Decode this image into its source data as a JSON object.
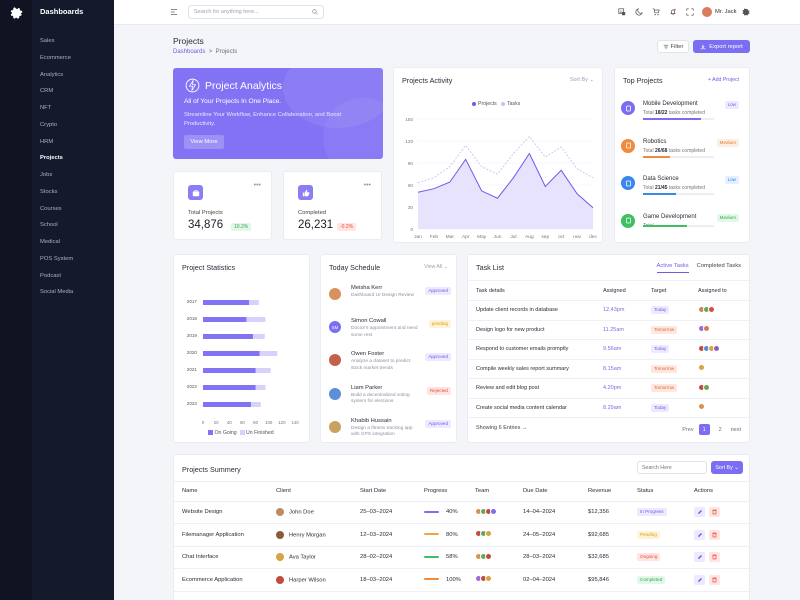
{
  "sidebar": {
    "brand": "Dashboards",
    "items": [
      {
        "label": "Sales"
      },
      {
        "label": "Ecommerce"
      },
      {
        "label": "Analytics"
      },
      {
        "label": "CRM"
      },
      {
        "label": "NFT"
      },
      {
        "label": "Crypto"
      },
      {
        "label": "HRM"
      },
      {
        "label": "Projects"
      },
      {
        "label": "Jobs"
      },
      {
        "label": "Stocks"
      },
      {
        "label": "Courses"
      },
      {
        "label": "School"
      },
      {
        "label": "Medical"
      },
      {
        "label": "POS System"
      },
      {
        "label": "Podcast"
      },
      {
        "label": "Social Media"
      }
    ]
  },
  "topbar": {
    "search_placeholder": "Search for anything here...",
    "user_name": "Mr. Jack"
  },
  "page": {
    "title": "Projects",
    "breadcrumb_root": "Dashboards",
    "breadcrumb_sep": ">",
    "breadcrumb_current": "Projects",
    "filter_label": "Filter",
    "export_label": "Export report"
  },
  "hero": {
    "title": "Project Analytics",
    "subtitle": "All of Your Projects In One Place.",
    "body": "Streamline Your Workflow, Enhance Collaboration, and Boost Productivity.",
    "button": "View More"
  },
  "stats": [
    {
      "label": "Total Projects",
      "value": "34,876",
      "badge": "10.2%",
      "trend": "up"
    },
    {
      "label": "Completed",
      "value": "26,231",
      "badge": "-0.2%",
      "trend": "down"
    }
  ],
  "activity": {
    "title": "Projects Activity",
    "sort_label": "Sort By",
    "legend_projects": "Projects",
    "legend_tasks": "Tasks"
  },
  "chart_data": [
    {
      "type": "area",
      "title": "Projects Activity",
      "x": [
        "Jan",
        "Feb",
        "Mar",
        "Apr",
        "May",
        "Jun",
        "Jul",
        "Aug",
        "sep",
        "oct",
        "nov",
        "dec"
      ],
      "ylim": [
        0,
        150
      ],
      "yticks": [
        0,
        30,
        60,
        90,
        120,
        150
      ],
      "series": [
        {
          "name": "Projects",
          "values": [
            50,
            55,
            64,
            95,
            52,
            42,
            70,
            103,
            58,
            80,
            48,
            29
          ]
        },
        {
          "name": "Tasks",
          "values": [
            63,
            70,
            85,
            114,
            85,
            75,
            103,
            126,
            98,
            112,
            82,
            70
          ]
        }
      ]
    },
    {
      "type": "bar",
      "title": "Project Statistics",
      "orientation": "horizontal",
      "categories": [
        "2017",
        "2018",
        "2019",
        "2020",
        "2021",
        "2022",
        "2023"
      ],
      "xlim": [
        0,
        140
      ],
      "xticks": [
        0,
        20,
        40,
        60,
        80,
        100,
        120,
        140
      ],
      "series": [
        {
          "name": "On Going",
          "values": [
            70,
            66,
            76,
            86,
            80,
            80,
            73
          ]
        },
        {
          "name": "Un Finished",
          "values": [
            85,
            95,
            94,
            113,
            103,
            95,
            88
          ]
        }
      ]
    }
  ],
  "top_projects": {
    "title": "Top Projects",
    "add_label": "+ Add Project",
    "items": [
      {
        "name": "Mobile Development",
        "total_prefix": "Total ",
        "done": "18/22",
        "suffix": " tasks completed",
        "priority": "Low",
        "progress": 0.82,
        "color": "#7b6ef2",
        "pill_bg": "#eceaff",
        "pill_fg": "#6d5ce8",
        "icon": "phone-icon"
      },
      {
        "name": "Robotics",
        "total_prefix": "Total ",
        "done": "26/68",
        "suffix": " tasks completed",
        "priority": "Medium",
        "progress": 0.38,
        "color": "#f08a3c",
        "pill_bg": "#fdeee2",
        "pill_fg": "#e8782a",
        "icon": "robot-icon"
      },
      {
        "name": "Data Science",
        "total_prefix": "Total ",
        "done": "21/45",
        "suffix": " tasks completed",
        "priority": "Low",
        "progress": 0.47,
        "color": "#3b86e8",
        "pill_bg": "#e4efff",
        "pill_fg": "#3b86e8",
        "icon": "chart-icon"
      },
      {
        "name": "Game Development",
        "total_prefix": "Total ",
        "done": "",
        "suffix": "",
        "priority": "Medium",
        "progress": 0.62,
        "color": "#3fbf62",
        "pill_bg": "#e3f7e8",
        "pill_fg": "#2fa952",
        "icon": "gamepad-icon"
      }
    ]
  },
  "project_statistics": {
    "title": "Project Statistics",
    "legend_ongoing": "On Going",
    "legend_unfinished": "Un Finished"
  },
  "schedule": {
    "title": "Today Schedule",
    "view_all": "View All",
    "items": [
      {
        "name": "Meisha Kerr",
        "desc": "Dashboard UI Design Review",
        "status": "Approved",
        "avatar": "#d8915e",
        "pill_bg": "#eceaff",
        "pill_fg": "#6d5ce8"
      },
      {
        "name": "Simon Cowall",
        "desc": "Doctor's appointment and need some rest",
        "status": "pending",
        "avatar": "#7b6ef2",
        "pill_bg": "#fff3d6",
        "pill_fg": "#d69b12",
        "initials": "SM"
      },
      {
        "name": "Owen Foster",
        "desc": "Analyze a dataset to predict stock market trends",
        "status": "Approved",
        "avatar": "#c2614c",
        "pill_bg": "#eceaff",
        "pill_fg": "#6d5ce8"
      },
      {
        "name": "Liam Parker",
        "desc": "Build a decentralized voting system for elections",
        "status": "Rejected",
        "avatar": "#5d8fd8",
        "pill_bg": "#ffe4e1",
        "pill_fg": "#e0523e"
      },
      {
        "name": "Khabib Hussain",
        "desc": "Design a fitness tracking app with GPS integration",
        "status": "Approved",
        "avatar": "#c8a25e",
        "pill_bg": "#eceaff",
        "pill_fg": "#6d5ce8"
      }
    ]
  },
  "task_list": {
    "title": "Task List",
    "tab_active": "Active Tasks",
    "tab_completed": "Completed Tasks",
    "headers": [
      "Task details",
      "Assigned",
      "Target",
      "Assigned to"
    ],
    "rows": [
      {
        "task": "Update client records in database",
        "assigned": "12.43pm",
        "target": "Today",
        "target_bg": "#eceaff",
        "target_fg": "#6d5ce8",
        "avatars": [
          "#c28a5c",
          "#6aa657",
          "#d5503e"
        ]
      },
      {
        "task": "Design logo for new product",
        "assigned": "11.25am",
        "target": "Tomorrow",
        "target_bg": "#fde7df",
        "target_fg": "#e0663e",
        "avatars": [
          "#9b6cd8",
          "#d37a5a"
        ]
      },
      {
        "task": "Respond to customer emails promptly",
        "assigned": "9.56am",
        "target": "Today",
        "target_bg": "#eceaff",
        "target_fg": "#6d5ce8",
        "avatars": [
          "#c24a3e",
          "#4e8fd4",
          "#d8a246",
          "#8a5fc8"
        ]
      },
      {
        "task": "Compile weekly sales report summary",
        "assigned": "8.15am",
        "target": "Tomorrow",
        "target_bg": "#fde7df",
        "target_fg": "#e0663e",
        "avatars": [
          "#d8a246"
        ]
      },
      {
        "task": "Review and edit blog post",
        "assigned": "4.20pm",
        "target": "Tomorrow",
        "target_bg": "#fde7df",
        "target_fg": "#e0663e",
        "avatars": [
          "#c24a3e",
          "#6aa657"
        ]
      },
      {
        "task": "Create social media content calendar",
        "assigned": "8.29am",
        "target": "Today",
        "target_bg": "#eceaff",
        "target_fg": "#6d5ce8",
        "avatars": [
          "#d8914e"
        ]
      }
    ],
    "showing": "Showing 6 Entries",
    "prev": "Prev",
    "page1": "1",
    "page2": "2",
    "next": "next"
  },
  "summary": {
    "title": "Projects Summery",
    "search_placeholder": "Search Here",
    "sort_label": "Sort By",
    "headers": [
      "Name",
      "Client",
      "Start Date",
      "Progress",
      "Team",
      "Due Date",
      "Revenue",
      "Status",
      "Actions"
    ],
    "rows": [
      {
        "name": "Website Design",
        "client": "John Doe",
        "start": "25–03–2024",
        "progress": "40%",
        "progress_color": "#7b6ef2",
        "due": "14–04–2024",
        "revenue": "$12,356",
        "status": "In Progress",
        "status_bg": "#eceaff",
        "status_fg": "#6d5ce8",
        "client_av": "#c28a5c"
      },
      {
        "name": "Filemanager Application",
        "client": "Henry Morgan",
        "start": "12–03–2024",
        "progress": "80%",
        "progress_color": "#f0a63c",
        "due": "24–05–2024",
        "revenue": "$92,685",
        "status": "Pending",
        "status_bg": "#fff3d6",
        "status_fg": "#d69b12",
        "client_av": "#8a5a3c"
      },
      {
        "name": "Chat Interface",
        "client": "Ava Taylor",
        "start": "28–02–2024",
        "progress": "58%",
        "progress_color": "#3fbf62",
        "due": "28–03–2024",
        "revenue": "$32,685",
        "status": "Ongoing",
        "status_bg": "#ffe4e1",
        "status_fg": "#e0523e",
        "client_av": "#d8a246"
      },
      {
        "name": "Ecommerce Application",
        "client": "Harper Wilson",
        "start": "18–03–2024",
        "progress": "100%",
        "progress_color": "#f08a3c",
        "due": "02–04–2024",
        "revenue": "$95,846",
        "status": "Completed",
        "status_bg": "#e3f7e8",
        "status_fg": "#2fa952",
        "client_av": "#c24a3e"
      }
    ]
  },
  "colors": {
    "accent": "#7b6ef2",
    "sidebar_bg": "#141a2c",
    "rail_bg": "#0f1322",
    "bar_ongoing": "#8273f5",
    "bar_unfinished": "#d7d2fb"
  }
}
